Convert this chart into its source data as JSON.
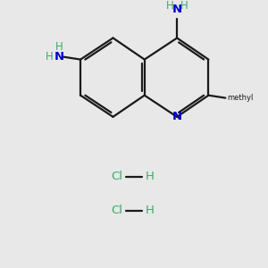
{
  "bg_color": "#e8e8e8",
  "bond_color": "#1a1a1a",
  "N_color": "#0000cc",
  "H_color": "#3aaa6a",
  "Cl_color": "#3aaa6a",
  "bond_width": 1.6,
  "figsize": [
    3.0,
    3.0
  ],
  "dpi": 100,
  "xlim": [
    0,
    10
  ],
  "ylim": [
    0,
    10
  ]
}
